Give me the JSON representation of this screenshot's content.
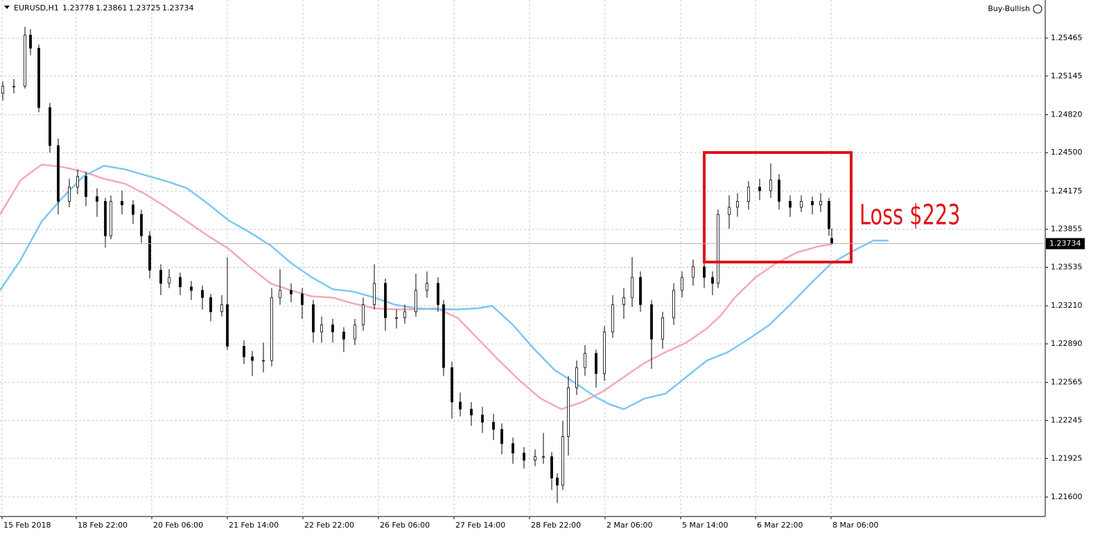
{
  "chart_data": {
    "type": "candlestick",
    "symbol": "EURUSD,H1",
    "badge": "Buy-Bullish",
    "annotation": "Loss $223",
    "grid": true,
    "candle_color": "#000000",
    "xlim": [
      0,
      377
    ],
    "xticks": [
      {
        "value": 0.75,
        "label": "15 Feb 2018"
      },
      {
        "value": 27.5,
        "label": "18 Feb 22:00"
      },
      {
        "value": 54.75,
        "label": "20 Feb 06:00"
      },
      {
        "value": 82,
        "label": "21 Feb 14:00"
      },
      {
        "value": 109.25,
        "label": "22 Feb 22:00"
      },
      {
        "value": 136.5,
        "label": "26 Feb 06:00"
      },
      {
        "value": 163.75,
        "label": "27 Feb 14:00"
      },
      {
        "value": 191,
        "label": "28 Feb 22:00"
      },
      {
        "value": 218.25,
        "label": "2 Mar 06:00"
      },
      {
        "value": 245.5,
        "label": "5 Mar 14:00"
      },
      {
        "value": 272.5,
        "label": "6 Mar 22:00"
      },
      {
        "value": 299.75,
        "label": "8 Mar 06:00"
      }
    ],
    "ylim": [
      1.21436,
      1.25786
    ],
    "yticks": [
      1.25465,
      1.25145,
      {
        "value": 1.2482,
        "label": "1.24820"
      },
      {
        "value": 1.245,
        "label": "1.24500"
      },
      1.24175,
      1.23855,
      1.23535,
      {
        "value": 1.2321,
        "label": "1.23210"
      },
      {
        "value": 1.2289,
        "label": "1.22890"
      },
      1.22565,
      1.22245,
      1.21925,
      {
        "value": 1.216,
        "label": "1.21600"
      }
    ],
    "x": [
      1,
      5,
      9,
      11,
      14,
      18,
      21,
      25,
      28,
      31,
      35,
      38,
      40,
      44,
      48,
      51,
      54,
      58,
      61,
      65,
      69,
      73,
      76,
      80,
      82,
      88,
      91,
      95,
      98,
      101,
      105,
      109,
      113,
      116,
      120,
      124,
      128,
      131,
      135,
      139,
      143,
      146,
      150,
      154,
      158,
      160,
      163,
      166,
      170,
      174,
      178,
      181,
      185,
      189,
      193,
      196,
      199,
      201,
      203,
      205,
      208,
      211,
      215,
      218,
      221,
      225,
      228,
      231,
      235,
      239,
      243,
      246,
      250,
      254,
      257,
      259,
      263,
      266,
      270,
      274,
      278,
      281,
      285,
      289,
      293,
      296,
      299,
      300
    ],
    "ohlc": [
      [
        1.25,
        1.251,
        1.2494,
        1.2506
      ],
      [
        1.2506,
        1.2512,
        1.25,
        1.2506
      ],
      [
        1.2506,
        1.2556,
        1.2504,
        1.2549
      ],
      [
        1.2549,
        1.2554,
        1.2532,
        1.2538
      ],
      [
        1.2538,
        1.2541,
        1.2484,
        1.2488
      ],
      [
        1.2488,
        1.2492,
        1.245,
        1.2456
      ],
      [
        1.2456,
        1.2462,
        1.2398,
        1.2409
      ],
      [
        1.2409,
        1.2428,
        1.2404,
        1.2421
      ],
      [
        1.2421,
        1.2436,
        1.2415,
        1.243
      ],
      [
        1.243,
        1.2434,
        1.2405,
        1.2413
      ],
      [
        1.2413,
        1.242,
        1.2396,
        1.2409
      ],
      [
        1.2409,
        1.2412,
        1.237,
        1.238
      ],
      [
        1.238,
        1.2414,
        1.2377,
        1.2409
      ],
      [
        1.2409,
        1.2418,
        1.2398,
        1.2406
      ],
      [
        1.2406,
        1.241,
        1.239,
        1.2398
      ],
      [
        1.2398,
        1.2402,
        1.2374,
        1.238
      ],
      [
        1.238,
        1.2384,
        1.2344,
        1.2351
      ],
      [
        1.2351,
        1.2356,
        1.233,
        1.234
      ],
      [
        1.234,
        1.2352,
        1.2336,
        1.2345
      ],
      [
        1.2345,
        1.2349,
        1.233,
        1.2337
      ],
      [
        1.2337,
        1.2342,
        1.2326,
        1.2334
      ],
      [
        1.2334,
        1.2338,
        1.2318,
        1.2328
      ],
      [
        1.2328,
        1.2331,
        1.2308,
        1.2316
      ],
      [
        1.2316,
        1.233,
        1.2312,
        1.2322
      ],
      [
        1.2322,
        1.2362,
        1.2284,
        1.2287
      ],
      [
        1.2287,
        1.2292,
        1.2272,
        1.2278
      ],
      [
        1.2278,
        1.2283,
        1.2262,
        1.2275
      ],
      [
        1.2275,
        1.229,
        1.2265,
        1.2275
      ],
      [
        1.2275,
        1.2336,
        1.227,
        1.2328
      ],
      [
        1.2328,
        1.2352,
        1.2322,
        1.2334
      ],
      [
        1.2334,
        1.234,
        1.2324,
        1.2331
      ],
      [
        1.2331,
        1.2336,
        1.231,
        1.2322
      ],
      [
        1.2322,
        1.2326,
        1.229,
        1.2299
      ],
      [
        1.2299,
        1.2312,
        1.229,
        1.2305
      ],
      [
        1.2305,
        1.231,
        1.229,
        1.2299
      ],
      [
        1.2299,
        1.2303,
        1.2282,
        1.2293
      ],
      [
        1.2293,
        1.231,
        1.2288,
        1.2305
      ],
      [
        1.2305,
        1.2328,
        1.23,
        1.2322
      ],
      [
        1.2322,
        1.2356,
        1.2318,
        1.234
      ],
      [
        1.234,
        1.2344,
        1.23,
        1.2311
      ],
      [
        1.2311,
        1.2318,
        1.2302,
        1.2311
      ],
      [
        1.2311,
        1.2322,
        1.2306,
        1.2316
      ],
      [
        1.2316,
        1.2348,
        1.2312,
        1.2334
      ],
      [
        1.2334,
        1.235,
        1.2328,
        1.234
      ],
      [
        1.234,
        1.2345,
        1.2316,
        1.2322
      ],
      [
        1.2322,
        1.2326,
        1.2262,
        1.2269
      ],
      [
        1.2269,
        1.2274,
        1.2226,
        1.224
      ],
      [
        1.224,
        1.2248,
        1.2228,
        1.2234
      ],
      [
        1.2234,
        1.224,
        1.222,
        1.2229
      ],
      [
        1.2229,
        1.2236,
        1.2214,
        1.2223
      ],
      [
        1.2223,
        1.223,
        1.2208,
        1.2217
      ],
      [
        1.2217,
        1.2222,
        1.2196,
        1.2205
      ],
      [
        1.2205,
        1.221,
        1.2188,
        1.2197
      ],
      [
        1.2197,
        1.2202,
        1.2184,
        1.2191
      ],
      [
        1.2191,
        1.22,
        1.2186,
        1.2194
      ],
      [
        1.2194,
        1.2214,
        1.2188,
        1.2194
      ],
      [
        1.2194,
        1.2198,
        1.2166,
        1.2176
      ],
      [
        1.2176,
        1.218,
        1.2155,
        1.217
      ],
      [
        1.217,
        1.2224,
        1.2166,
        1.2211
      ],
      [
        1.2211,
        1.2262,
        1.2195,
        1.2252
      ],
      [
        1.2252,
        1.2275,
        1.2246,
        1.2269
      ],
      [
        1.2269,
        1.2288,
        1.2262,
        1.2281
      ],
      [
        1.2281,
        1.2284,
        1.2252,
        1.2264
      ],
      [
        1.2264,
        1.2304,
        1.2258,
        1.2299
      ],
      [
        1.2299,
        1.233,
        1.2294,
        1.2322
      ],
      [
        1.2322,
        1.2336,
        1.231,
        1.2328
      ],
      [
        1.2328,
        1.2362,
        1.232,
        1.2345
      ],
      [
        1.2345,
        1.235,
        1.2316,
        1.2322
      ],
      [
        1.2322,
        1.2326,
        1.2268,
        1.2293
      ],
      [
        1.2293,
        1.2316,
        1.2285,
        1.2311
      ],
      [
        1.2311,
        1.234,
        1.2305,
        1.2334
      ],
      [
        1.2334,
        1.235,
        1.2328,
        1.2345
      ],
      [
        1.2345,
        1.236,
        1.2338,
        1.2354
      ],
      [
        1.2354,
        1.2358,
        1.2336,
        1.2345
      ],
      [
        1.2345,
        1.235,
        1.233,
        1.234
      ],
      [
        1.234,
        1.2402,
        1.2336,
        1.2398
      ],
      [
        1.2398,
        1.2414,
        1.2386,
        1.2404
      ],
      [
        1.2404,
        1.2416,
        1.2396,
        1.2409
      ],
      [
        1.2409,
        1.2426,
        1.2402,
        1.2421
      ],
      [
        1.2421,
        1.2428,
        1.241,
        1.2418
      ],
      [
        1.2418,
        1.2441,
        1.2412,
        1.2427
      ],
      [
        1.2427,
        1.2432,
        1.2402,
        1.2409
      ],
      [
        1.2409,
        1.2414,
        1.2396,
        1.2404
      ],
      [
        1.2404,
        1.2414,
        1.24,
        1.2409
      ],
      [
        1.2409,
        1.2413,
        1.2398,
        1.2406
      ],
      [
        1.2406,
        1.2416,
        1.24,
        1.2409
      ],
      [
        1.2409,
        1.2412,
        1.238,
        1.2386
      ],
      [
        1.23778,
        1.23861,
        1.23725,
        1.23734
      ]
    ],
    "lines": [
      {
        "color": "#f4a9b5",
        "x": [
          0,
          7.5,
          15,
          22.5,
          30,
          37.5,
          45,
          52.5,
          60,
          67.5,
          75,
          82.5,
          90,
          97.5,
          105,
          112.5,
          120,
          127.5,
          135,
          142.5,
          150,
          157.5,
          165,
          172.5,
          180,
          187.5,
          195,
          202.5,
          210,
          217.5,
          225,
          232.5,
          240,
          247.5,
          255,
          260,
          265,
          272.5,
          280,
          287.5,
          295,
          300.25
        ],
        "values": [
          1.2398,
          1.2427,
          1.244,
          1.2438,
          1.2434,
          1.2428,
          1.2424,
          1.2415,
          1.2404,
          1.2392,
          1.238,
          1.2369,
          1.2354,
          1.234,
          1.2334,
          1.2329,
          1.2328,
          1.2323,
          1.2319,
          1.2318,
          1.2318,
          1.2319,
          1.2311,
          1.2293,
          1.2275,
          1.2258,
          1.2243,
          1.2234,
          1.224,
          1.2249,
          1.2261,
          1.2273,
          1.2282,
          1.229,
          1.2302,
          1.2313,
          1.2328,
          1.2345,
          1.2357,
          1.2366,
          1.2371,
          1.2373
        ]
      },
      {
        "color": "#7ac8f0",
        "x": [
          0,
          7.5,
          15,
          22.5,
          30,
          37.5,
          45,
          52.5,
          60,
          67.5,
          75,
          82.5,
          90,
          97.5,
          105,
          112.5,
          120,
          127.5,
          135,
          142.5,
          150,
          157.5,
          165,
          172.5,
          177.5,
          185,
          192.5,
          200,
          207.5,
          215,
          220,
          225,
          232.5,
          240,
          247.5,
          255,
          262.5,
          270,
          277.5,
          285,
          292.5,
          300,
          307.5,
          315,
          320.5
        ],
        "values": [
          1.2334,
          1.236,
          1.2392,
          1.2412,
          1.243,
          1.2439,
          1.2436,
          1.2431,
          1.2426,
          1.242,
          1.2407,
          1.2393,
          1.2383,
          1.2372,
          1.2357,
          1.2345,
          1.2335,
          1.2333,
          1.2328,
          1.2322,
          1.2319,
          1.2318,
          1.2318,
          1.2319,
          1.2321,
          1.2305,
          1.2285,
          1.2267,
          1.2256,
          1.2244,
          1.2238,
          1.2234,
          1.2243,
          1.2247,
          1.2261,
          1.2275,
          1.2282,
          1.2293,
          1.2305,
          1.2322,
          1.234,
          1.2357,
          1.2367,
          1.2376,
          1.2376
        ]
      }
    ]
  }
}
